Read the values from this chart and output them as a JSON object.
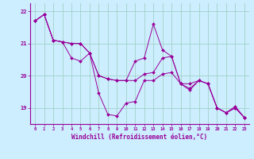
{
  "xlabel": "Windchill (Refroidissement éolien,°C)",
  "background_color": "#cceeff",
  "grid_color": "#99ccbb",
  "line_color": "#990099",
  "hours": [
    0,
    1,
    2,
    3,
    4,
    5,
    6,
    7,
    8,
    9,
    10,
    11,
    12,
    13,
    14,
    15,
    16,
    17,
    18,
    19,
    20,
    21,
    22,
    23
  ],
  "series1": [
    21.7,
    21.9,
    21.1,
    21.05,
    20.55,
    20.45,
    20.7,
    19.45,
    18.8,
    18.75,
    19.15,
    19.2,
    19.85,
    19.85,
    20.05,
    20.1,
    19.75,
    19.6,
    19.85,
    19.75,
    19.0,
    18.85,
    19.0,
    18.7
  ],
  "series2": [
    21.7,
    21.9,
    21.1,
    21.05,
    21.0,
    21.0,
    20.7,
    20.0,
    19.9,
    19.85,
    19.85,
    19.85,
    20.05,
    20.1,
    20.55,
    20.6,
    19.75,
    19.75,
    19.85,
    19.75,
    19.0,
    18.85,
    19.0,
    18.7
  ],
  "series3": [
    21.7,
    21.9,
    21.1,
    21.05,
    21.0,
    21.0,
    20.7,
    20.0,
    19.9,
    19.85,
    19.85,
    20.45,
    20.55,
    21.6,
    20.8,
    20.6,
    19.75,
    19.55,
    19.85,
    19.75,
    19.0,
    18.85,
    19.05,
    18.7
  ],
  "ylim": [
    18.5,
    22.25
  ],
  "yticks": [
    19,
    20,
    21,
    22
  ],
  "xticks": [
    0,
    1,
    2,
    3,
    4,
    5,
    6,
    7,
    8,
    9,
    10,
    11,
    12,
    13,
    14,
    15,
    16,
    17,
    18,
    19,
    20,
    21,
    22,
    23
  ]
}
